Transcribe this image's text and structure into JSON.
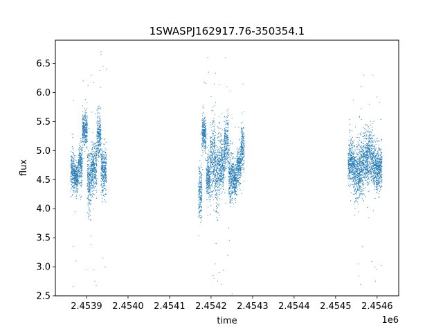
{
  "chart_data": {
    "type": "scatter",
    "title": "1SWASPJ162917.76-350354.1",
    "xlabel": "time",
    "ylabel": "flux",
    "x_offset_label": "1e6",
    "x_scale": 1000000,
    "xlim": [
      2453825,
      2454652
    ],
    "ylim": [
      2.5,
      6.9
    ],
    "x_ticks": [
      2453900,
      2454000,
      2454100,
      2454200,
      2454300,
      2454400,
      2454500,
      2454600
    ],
    "x_tick_labels": [
      "2.4539",
      "2.4540",
      "2.4541",
      "2.4542",
      "2.4543",
      "2.4544",
      "2.4545",
      "2.4546"
    ],
    "y_ticks": [
      2.5,
      3.0,
      3.5,
      4.0,
      4.5,
      5.0,
      5.5,
      6.0,
      6.5
    ],
    "y_tick_labels": [
      "2.5",
      "3.0",
      "3.5",
      "4.0",
      "4.5",
      "5.0",
      "5.5",
      "6.0",
      "6.5"
    ],
    "grid": false,
    "marker_color": "#1f77b4",
    "clusters": [
      {
        "x_start": 2453862,
        "x_end": 2453870,
        "center": 4.65,
        "spread": 0.22
      },
      {
        "x_start": 2453870,
        "x_end": 2453880,
        "center": 4.55,
        "spread": 0.15
      },
      {
        "x_start": 2453880,
        "x_end": 2453890,
        "center": 4.75,
        "spread": 0.22
      },
      {
        "x_start": 2453890,
        "x_end": 2453902,
        "center": 5.35,
        "spread": 0.2
      },
      {
        "x_start": 2453902,
        "x_end": 2453912,
        "center": 4.5,
        "spread": 0.35
      },
      {
        "x_start": 2453912,
        "x_end": 2453925,
        "center": 4.7,
        "spread": 0.3
      },
      {
        "x_start": 2453925,
        "x_end": 2453935,
        "center": 5.25,
        "spread": 0.25
      },
      {
        "x_start": 2453935,
        "x_end": 2453948,
        "center": 4.65,
        "spread": 0.25
      },
      {
        "x_start": 2454170,
        "x_end": 2454178,
        "center": 4.3,
        "spread": 0.3
      },
      {
        "x_start": 2454178,
        "x_end": 2454188,
        "center": 5.3,
        "spread": 0.2
      },
      {
        "x_start": 2454188,
        "x_end": 2454198,
        "center": 4.55,
        "spread": 0.25
      },
      {
        "x_start": 2454198,
        "x_end": 2454210,
        "center": 4.85,
        "spread": 0.4
      },
      {
        "x_start": 2454210,
        "x_end": 2454222,
        "center": 4.65,
        "spread": 0.45
      },
      {
        "x_start": 2454222,
        "x_end": 2454232,
        "center": 4.75,
        "spread": 0.3
      },
      {
        "x_start": 2454232,
        "x_end": 2454242,
        "center": 5.15,
        "spread": 0.3
      },
      {
        "x_start": 2454242,
        "x_end": 2454252,
        "center": 4.55,
        "spread": 0.3
      },
      {
        "x_start": 2454252,
        "x_end": 2454262,
        "center": 4.5,
        "spread": 0.2
      },
      {
        "x_start": 2454262,
        "x_end": 2454272,
        "center": 4.75,
        "spread": 0.2
      },
      {
        "x_start": 2454272,
        "x_end": 2454280,
        "center": 5.05,
        "spread": 0.25
      },
      {
        "x_start": 2454530,
        "x_end": 2454545,
        "center": 4.8,
        "spread": 0.25
      },
      {
        "x_start": 2454545,
        "x_end": 2454560,
        "center": 4.6,
        "spread": 0.3
      },
      {
        "x_start": 2454560,
        "x_end": 2454575,
        "center": 4.8,
        "spread": 0.35
      },
      {
        "x_start": 2454575,
        "x_end": 2454590,
        "center": 4.9,
        "spread": 0.3
      },
      {
        "x_start": 2454590,
        "x_end": 2454612,
        "center": 4.7,
        "spread": 0.25
      }
    ],
    "outliers": [
      {
        "x": 2453935,
        "y": 6.7
      },
      {
        "x": 2453935,
        "y": 6.65
      },
      {
        "x": 2453940,
        "y": 6.45
      },
      {
        "x": 2453948,
        "y": 6.4
      },
      {
        "x": 2453912,
        "y": 6.3
      },
      {
        "x": 2453918,
        "y": 2.95
      },
      {
        "x": 2453920,
        "y": 2.75
      },
      {
        "x": 2453940,
        "y": 3.15
      },
      {
        "x": 2453945,
        "y": 3.0
      },
      {
        "x": 2453868,
        "y": 3.35
      },
      {
        "x": 2453875,
        "y": 3.1
      },
      {
        "x": 2453900,
        "y": 2.95
      },
      {
        "x": 2454175,
        "y": 3.85
      },
      {
        "x": 2454192,
        "y": 6.6
      },
      {
        "x": 2454194,
        "y": 6.35
      },
      {
        "x": 2454205,
        "y": 2.85
      },
      {
        "x": 2454207,
        "y": 2.8
      },
      {
        "x": 2454210,
        "y": 3.05
      },
      {
        "x": 2454212,
        "y": 3.4
      },
      {
        "x": 2454216,
        "y": 2.75
      },
      {
        "x": 2454220,
        "y": 2.9
      },
      {
        "x": 2454225,
        "y": 2.7
      },
      {
        "x": 2454235,
        "y": 6.6
      },
      {
        "x": 2454240,
        "y": 3.2
      },
      {
        "x": 2454244,
        "y": 3.45
      },
      {
        "x": 2454238,
        "y": 6.1
      },
      {
        "x": 2454555,
        "y": 3.05
      },
      {
        "x": 2454560,
        "y": 2.7
      },
      {
        "x": 2454565,
        "y": 3.35
      },
      {
        "x": 2454568,
        "y": 6.3
      },
      {
        "x": 2454595,
        "y": 3.0
      },
      {
        "x": 2454596,
        "y": 2.75
      },
      {
        "x": 2454590,
        "y": 6.3
      },
      {
        "x": 2454598,
        "y": 2.95
      }
    ]
  }
}
